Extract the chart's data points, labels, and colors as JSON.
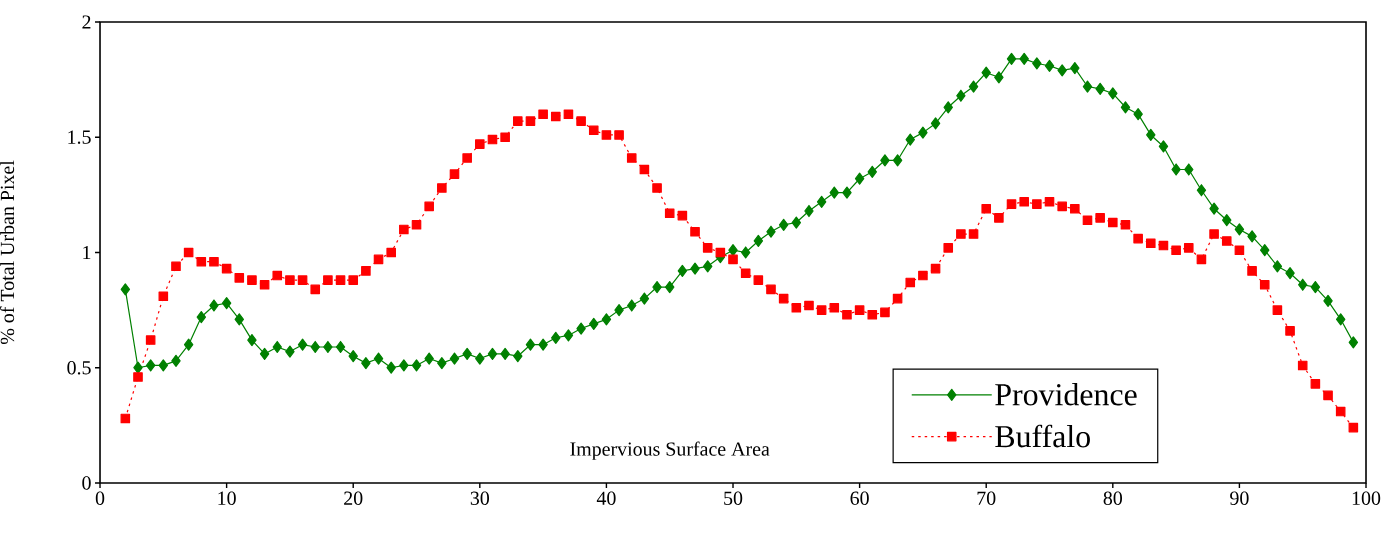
{
  "chart_data": {
    "type": "line",
    "xlabel": "Impervious Surface Area",
    "ylabel": "% of Total Urban Pixel",
    "x": [
      2,
      3,
      4,
      5,
      6,
      7,
      8,
      9,
      10,
      11,
      12,
      13,
      14,
      15,
      16,
      17,
      18,
      19,
      20,
      21,
      22,
      23,
      24,
      25,
      26,
      27,
      28,
      29,
      30,
      31,
      32,
      33,
      34,
      35,
      36,
      37,
      38,
      39,
      40,
      41,
      42,
      43,
      44,
      45,
      46,
      47,
      48,
      49,
      50,
      51,
      52,
      53,
      54,
      55,
      56,
      57,
      58,
      59,
      60,
      61,
      62,
      63,
      64,
      65,
      66,
      67,
      68,
      69,
      70,
      71,
      72,
      73,
      74,
      75,
      76,
      77,
      78,
      79,
      80,
      81,
      82,
      83,
      84,
      85,
      86,
      87,
      88,
      89,
      90,
      91,
      92,
      93,
      94,
      95,
      96,
      97,
      98,
      99
    ],
    "series": [
      {
        "name": "Providence",
        "color": "#008000",
        "marker": "diamond",
        "line_style": "solid",
        "values": [
          0.84,
          0.5,
          0.51,
          0.51,
          0.53,
          0.6,
          0.72,
          0.77,
          0.78,
          0.71,
          0.62,
          0.56,
          0.59,
          0.57,
          0.6,
          0.59,
          0.59,
          0.59,
          0.55,
          0.52,
          0.54,
          0.5,
          0.51,
          0.51,
          0.54,
          0.52,
          0.54,
          0.56,
          0.54,
          0.56,
          0.56,
          0.55,
          0.6,
          0.6,
          0.63,
          0.64,
          0.67,
          0.69,
          0.71,
          0.75,
          0.77,
          0.8,
          0.85,
          0.85,
          0.92,
          0.93,
          0.94,
          0.98,
          1.01,
          1.0,
          1.05,
          1.09,
          1.12,
          1.13,
          1.18,
          1.22,
          1.26,
          1.26,
          1.32,
          1.35,
          1.4,
          1.4,
          1.49,
          1.52,
          1.56,
          1.63,
          1.68,
          1.72,
          1.78,
          1.76,
          1.84,
          1.84,
          1.82,
          1.81,
          1.79,
          1.8,
          1.72,
          1.71,
          1.69,
          1.63,
          1.6,
          1.51,
          1.46,
          1.36,
          1.36,
          1.27,
          1.19,
          1.14,
          1.1,
          1.07,
          1.01,
          0.94,
          0.91,
          0.86,
          0.85,
          0.79,
          0.71,
          0.61
        ]
      },
      {
        "name": "Buffalo",
        "color": "#ff0000",
        "marker": "square",
        "line_style": "dotted",
        "values": [
          0.28,
          0.46,
          0.62,
          0.81,
          0.94,
          1.0,
          0.96,
          0.96,
          0.93,
          0.89,
          0.88,
          0.86,
          0.9,
          0.88,
          0.88,
          0.84,
          0.88,
          0.88,
          0.88,
          0.92,
          0.97,
          1.0,
          1.1,
          1.12,
          1.2,
          1.28,
          1.34,
          1.41,
          1.47,
          1.49,
          1.5,
          1.57,
          1.57,
          1.6,
          1.59,
          1.6,
          1.57,
          1.53,
          1.51,
          1.51,
          1.41,
          1.36,
          1.28,
          1.17,
          1.16,
          1.09,
          1.02,
          1.0,
          0.97,
          0.91,
          0.88,
          0.84,
          0.8,
          0.76,
          0.77,
          0.75,
          0.76,
          0.73,
          0.75,
          0.73,
          0.74,
          0.8,
          0.87,
          0.9,
          0.93,
          1.02,
          1.08,
          1.08,
          1.19,
          1.15,
          1.21,
          1.22,
          1.21,
          1.22,
          1.2,
          1.19,
          1.14,
          1.15,
          1.13,
          1.12,
          1.06,
          1.04,
          1.03,
          1.01,
          1.02,
          0.97,
          1.08,
          1.05,
          1.01,
          0.92,
          0.86,
          0.75,
          0.66,
          0.51,
          0.43,
          0.38,
          0.31,
          0.24
        ]
      }
    ],
    "xlim": [
      0,
      100
    ],
    "xticks": [
      0,
      10,
      20,
      30,
      40,
      50,
      60,
      70,
      80,
      90,
      100
    ],
    "ylim": [
      0,
      2
    ],
    "yticks": [
      0,
      0.5,
      1,
      1.5,
      2
    ],
    "grid": false,
    "legend": "bottom right"
  }
}
